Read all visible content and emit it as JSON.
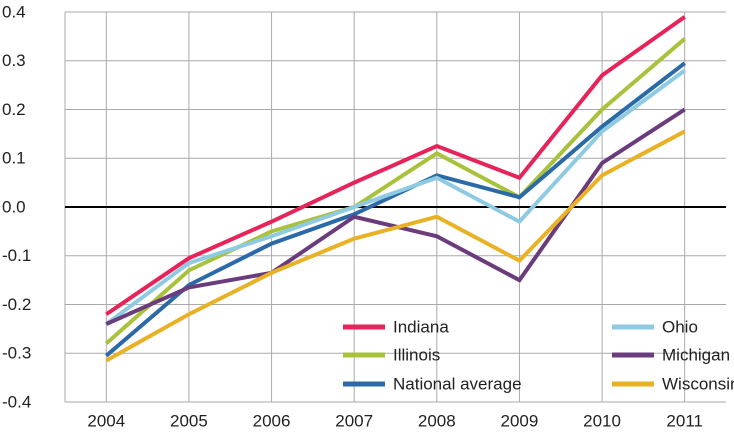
{
  "chart_data": {
    "type": "line",
    "categories": [
      "2004",
      "2005",
      "2006",
      "2007",
      "2008",
      "2009",
      "2010",
      "2011"
    ],
    "series": [
      {
        "name": "Indiana",
        "color": "#e6245a",
        "values": [
          -0.22,
          -0.105,
          -0.03,
          0.05,
          0.125,
          0.06,
          0.27,
          0.39
        ]
      },
      {
        "name": "Illinois",
        "color": "#a9c23c",
        "values": [
          -0.28,
          -0.13,
          -0.05,
          0.0,
          0.11,
          0.02,
          0.2,
          0.345
        ]
      },
      {
        "name": "National average",
        "color": "#2b6aa6",
        "values": [
          -0.305,
          -0.16,
          -0.075,
          -0.015,
          0.065,
          0.02,
          0.165,
          0.295
        ]
      },
      {
        "name": "Ohio",
        "color": "#8ecbe2",
        "values": [
          -0.24,
          -0.115,
          -0.06,
          0.0,
          0.06,
          -0.03,
          0.155,
          0.28
        ]
      },
      {
        "name": "Michigan",
        "color": "#6b3c7b",
        "values": [
          -0.24,
          -0.165,
          -0.135,
          -0.02,
          -0.06,
          -0.15,
          0.09,
          0.2
        ]
      },
      {
        "name": "Wisconsin",
        "color": "#e9b224",
        "values": [
          -0.315,
          -0.22,
          -0.135,
          -0.065,
          -0.02,
          -0.11,
          0.065,
          0.155
        ]
      }
    ],
    "ylim": [
      -0.4,
      0.4
    ],
    "yticks": [
      -0.4,
      -0.3,
      -0.2,
      -0.1,
      {
        "value": 0,
        "label": "0.0"
      },
      0.1,
      0.2,
      0.3,
      0.4
    ],
    "grid": true,
    "legend": "lower-right"
  }
}
